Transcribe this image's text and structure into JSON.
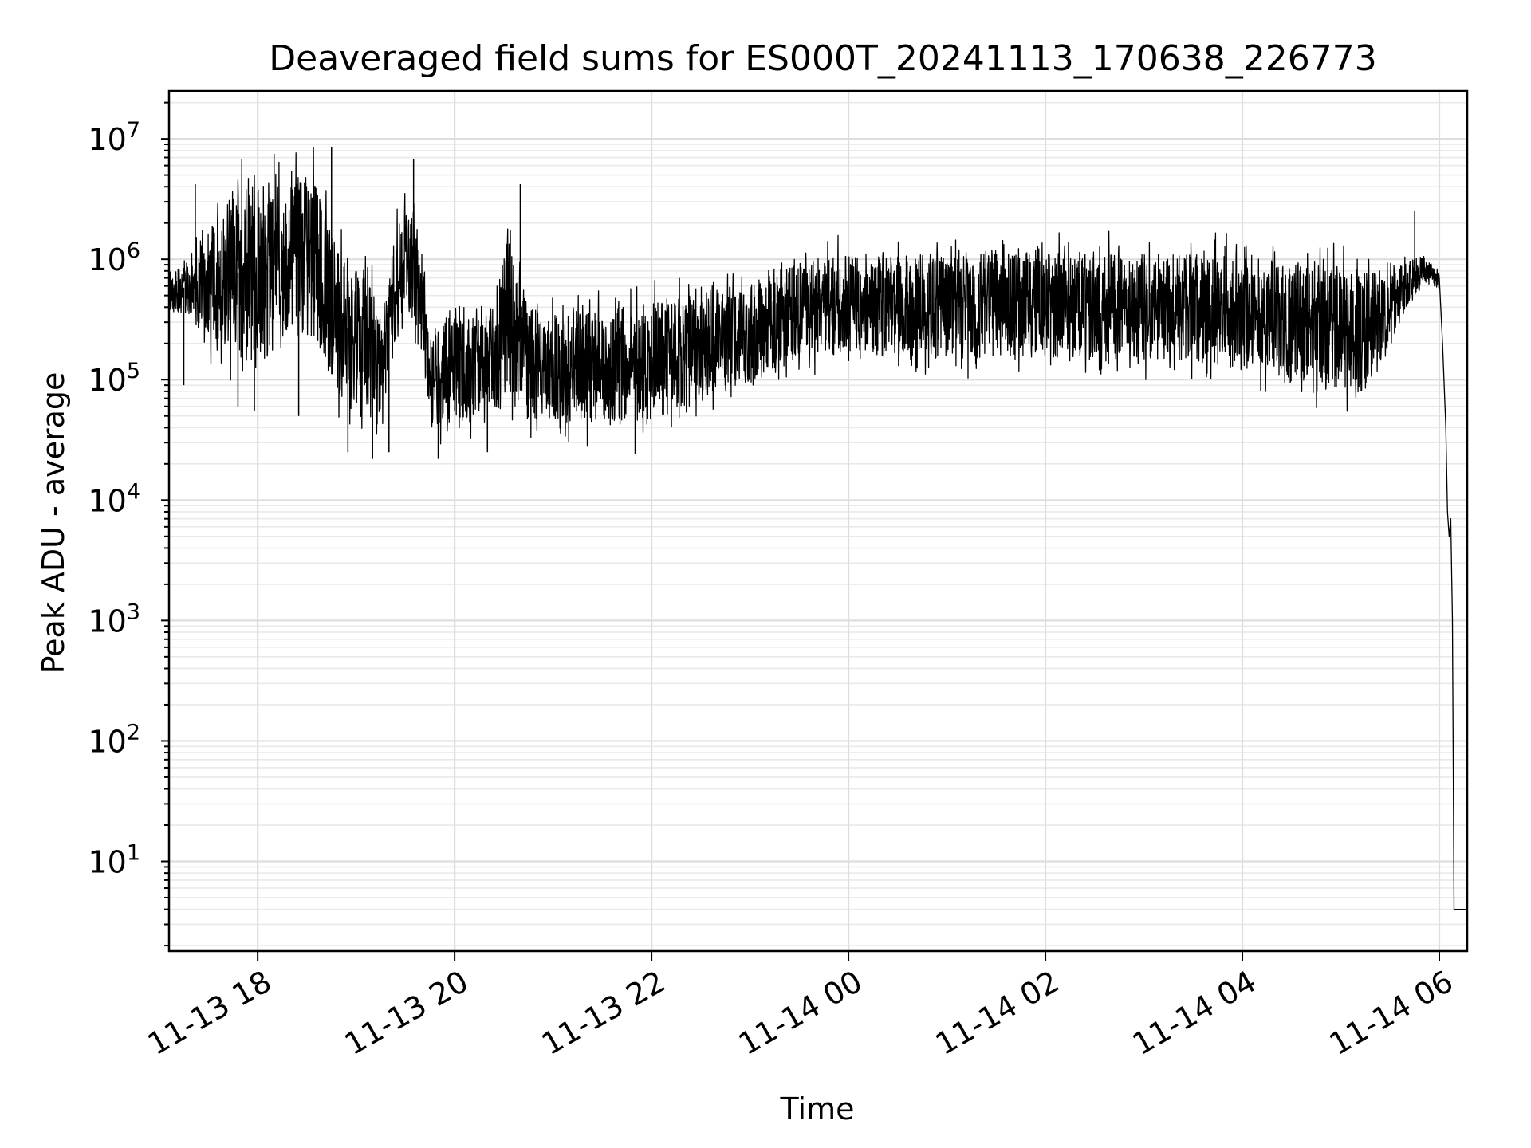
{
  "chart_data": {
    "type": "line",
    "title": "Deaveraged field sums for ES000T_20241113_170638_226773",
    "xlabel": "Time",
    "ylabel": "Peak ADU - average",
    "yscale": "log",
    "ylim": [
      1.8,
      25000000
    ],
    "xlim": [
      "2024-11-13T17:06",
      "2024-11-14T06:17"
    ],
    "grid": "on (major and minor)",
    "line_color": "#000000",
    "x_ticks": [
      {
        "label": "11-13 18",
        "t": "2024-11-13T18:00"
      },
      {
        "label": "11-13 20",
        "t": "2024-11-13T20:00"
      },
      {
        "label": "11-13 22",
        "t": "2024-11-13T22:00"
      },
      {
        "label": "11-14 00",
        "t": "2024-11-14T00:00"
      },
      {
        "label": "11-14 02",
        "t": "2024-11-14T02:00"
      },
      {
        "label": "11-14 04",
        "t": "2024-11-14T04:00"
      },
      {
        "label": "11-14 06",
        "t": "2024-11-14T06:00"
      }
    ],
    "y_ticks": [
      {
        "base": "10",
        "exp": "1",
        "value": 10
      },
      {
        "base": "10",
        "exp": "2",
        "value": 100
      },
      {
        "base": "10",
        "exp": "3",
        "value": 1000
      },
      {
        "base": "10",
        "exp": "4",
        "value": 10000
      },
      {
        "base": "10",
        "exp": "5",
        "value": 100000
      },
      {
        "base": "10",
        "exp": "6",
        "value": 1000000
      },
      {
        "base": "10",
        "exp": "7",
        "value": 10000000
      }
    ],
    "series": [
      {
        "envelope": [
          {
            "t": "2024-11-13T17:06",
            "low": 350000,
            "high": 800000
          },
          {
            "t": "2024-11-13T17:20",
            "low": 250000,
            "high": 1500000
          },
          {
            "t": "2024-11-13T17:35",
            "low": 100000,
            "high": 4000000
          },
          {
            "t": "2024-11-13T17:50",
            "low": 80000,
            "high": 8000000
          },
          {
            "t": "2024-11-13T18:05",
            "low": 70000,
            "high": 9000000
          },
          {
            "t": "2024-11-13T18:20",
            "low": 150000,
            "high": 8000000
          },
          {
            "t": "2024-11-13T18:35",
            "low": 100000,
            "high": 10000000
          },
          {
            "t": "2024-11-13T18:50",
            "low": 40000,
            "high": 2000000
          },
          {
            "t": "2024-11-13T19:05",
            "low": 30000,
            "high": 2000000
          },
          {
            "t": "2024-11-13T19:15",
            "low": 30000,
            "high": 500000
          },
          {
            "t": "2024-11-13T19:25",
            "low": 150000,
            "high": 3000000
          },
          {
            "t": "2024-11-13T19:35",
            "low": 200000,
            "high": 5000000
          },
          {
            "t": "2024-11-13T19:45",
            "low": 30000,
            "high": 500000
          },
          {
            "t": "2024-11-13T20:00",
            "low": 28000,
            "high": 500000
          },
          {
            "t": "2024-11-13T20:20",
            "low": 35000,
            "high": 500000
          },
          {
            "t": "2024-11-13T20:35",
            "low": 35000,
            "high": 4000000
          },
          {
            "t": "2024-11-13T20:45",
            "low": 30000,
            "high": 550000
          },
          {
            "t": "2024-11-13T21:30",
            "low": 27000,
            "high": 600000
          },
          {
            "t": "2024-11-13T22:00",
            "low": 28000,
            "high": 700000
          },
          {
            "t": "2024-11-13T22:30",
            "low": 40000,
            "high": 850000
          },
          {
            "t": "2024-11-13T23:00",
            "low": 60000,
            "high": 950000
          },
          {
            "t": "2024-11-13T23:30",
            "low": 100000,
            "high": 1500000
          },
          {
            "t": "2024-11-14T00:00",
            "low": 110000,
            "high": 1600000
          },
          {
            "t": "2024-11-14T01:00",
            "low": 100000,
            "high": 1700000
          },
          {
            "t": "2024-11-14T02:00",
            "low": 100000,
            "high": 1800000
          },
          {
            "t": "2024-11-14T03:00",
            "low": 100000,
            "high": 1700000
          },
          {
            "t": "2024-11-14T04:00",
            "low": 80000,
            "high": 1700000
          },
          {
            "t": "2024-11-14T04:30",
            "low": 60000,
            "high": 1500000
          },
          {
            "t": "2024-11-14T05:00",
            "low": 50000,
            "high": 1400000
          },
          {
            "t": "2024-11-14T05:15",
            "low": 45000,
            "high": 1300000
          },
          {
            "t": "2024-11-14T05:30",
            "low": 150000,
            "high": 1100000
          },
          {
            "t": "2024-11-14T05:50",
            "low": 600000,
            "high": 1200000
          },
          {
            "t": "2024-11-14T06:00",
            "low": 500000,
            "high": 900000
          }
        ],
        "tail": [
          {
            "t": "2024-11-14T06:00",
            "y": 700000
          },
          {
            "t": "2024-11-14T06:02",
            "y": 200000
          },
          {
            "t": "2024-11-14T06:04",
            "y": 40000
          },
          {
            "t": "2024-11-14T06:05",
            "y": 8000
          },
          {
            "t": "2024-11-14T06:06",
            "y": 5000
          },
          {
            "t": "2024-11-14T06:07",
            "y": 7000
          },
          {
            "t": "2024-11-14T06:08",
            "y": 1000
          },
          {
            "t": "2024-11-14T06:09",
            "y": 4
          },
          {
            "t": "2024-11-14T06:17",
            "y": 4
          }
        ],
        "spikes": [
          {
            "t": "2024-11-13T17:15",
            "low": 90000
          },
          {
            "t": "2024-11-13T17:22",
            "high": 4200000
          },
          {
            "t": "2024-11-13T17:45",
            "high": 3200000
          },
          {
            "t": "2024-11-13T17:48",
            "low": 60000
          },
          {
            "t": "2024-11-13T17:58",
            "low": 55000
          },
          {
            "t": "2024-11-13T18:10",
            "high": 7500000
          },
          {
            "t": "2024-11-13T18:25",
            "low": 50000
          },
          {
            "t": "2024-11-13T18:45",
            "high": 8500000
          },
          {
            "t": "2024-11-13T18:55",
            "low": 25000
          },
          {
            "t": "2024-11-13T19:10",
            "low": 22000
          },
          {
            "t": "2024-11-13T19:20",
            "low": 25000
          },
          {
            "t": "2024-11-13T19:35",
            "high": 6800000
          },
          {
            "t": "2024-11-13T19:50",
            "low": 22000
          },
          {
            "t": "2024-11-13T20:20",
            "low": 25000
          },
          {
            "t": "2024-11-13T20:40",
            "high": 4200000
          },
          {
            "t": "2024-11-13T21:50",
            "low": 24000
          },
          {
            "t": "2024-11-14T05:45",
            "high": 2500000
          }
        ]
      }
    ]
  }
}
